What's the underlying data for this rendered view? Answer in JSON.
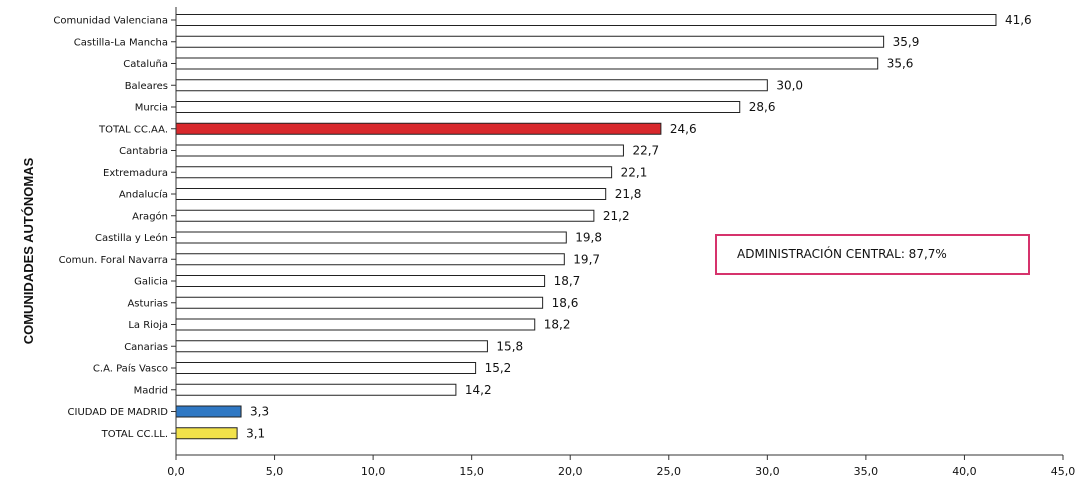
{
  "chart_data": {
    "type": "bar",
    "orientation": "horizontal",
    "ylabel": "COMUNIDADES AUTÓNOMAS",
    "xlim": [
      0,
      45
    ],
    "xticks": [
      "0,0",
      "5,0",
      "10,0",
      "15,0",
      "20,0",
      "25,0",
      "30,0",
      "35,0",
      "40,0",
      "45,0"
    ],
    "categories": [
      "Comunidad Valenciana",
      "Castilla-La Mancha",
      "Cataluña",
      "Baleares",
      "Murcia",
      "TOTAL CC.AA.",
      "Cantabria",
      "Extremadura",
      "Andalucía",
      "Aragón",
      "Castilla y León",
      "Comun. Foral Navarra",
      "Galicia",
      "Asturias",
      "La Rioja",
      "Canarias",
      "C.A. País Vasco",
      "Madrid",
      "CIUDAD DE MADRID",
      "TOTAL CC.LL."
    ],
    "values": [
      41.6,
      35.9,
      35.6,
      30.0,
      28.6,
      24.6,
      22.7,
      22.1,
      21.8,
      21.2,
      19.8,
      19.7,
      18.7,
      18.6,
      18.2,
      15.8,
      15.2,
      14.2,
      3.3,
      3.1
    ],
    "value_labels": [
      "41,6",
      "35,9",
      "35,6",
      "30,0",
      "28,6",
      "24,6",
      "22,7",
      "22,1",
      "21,8",
      "21,2",
      "19,8",
      "19,7",
      "18,7",
      "18,6",
      "18,2",
      "15,8",
      "15,2",
      "14,2",
      "3,3",
      "3,1"
    ],
    "bar_colors": [
      "#ffffff",
      "#ffffff",
      "#ffffff",
      "#ffffff",
      "#ffffff",
      "#d8282c",
      "#ffffff",
      "#ffffff",
      "#ffffff",
      "#ffffff",
      "#ffffff",
      "#ffffff",
      "#ffffff",
      "#ffffff",
      "#ffffff",
      "#ffffff",
      "#ffffff",
      "#ffffff",
      "#2f78c4",
      "#f2e24a"
    ],
    "grid": false,
    "annotation": "ADMINISTRACIÓN CENTRAL: 87,7%",
    "annotation_border_color": "#d6336c"
  }
}
